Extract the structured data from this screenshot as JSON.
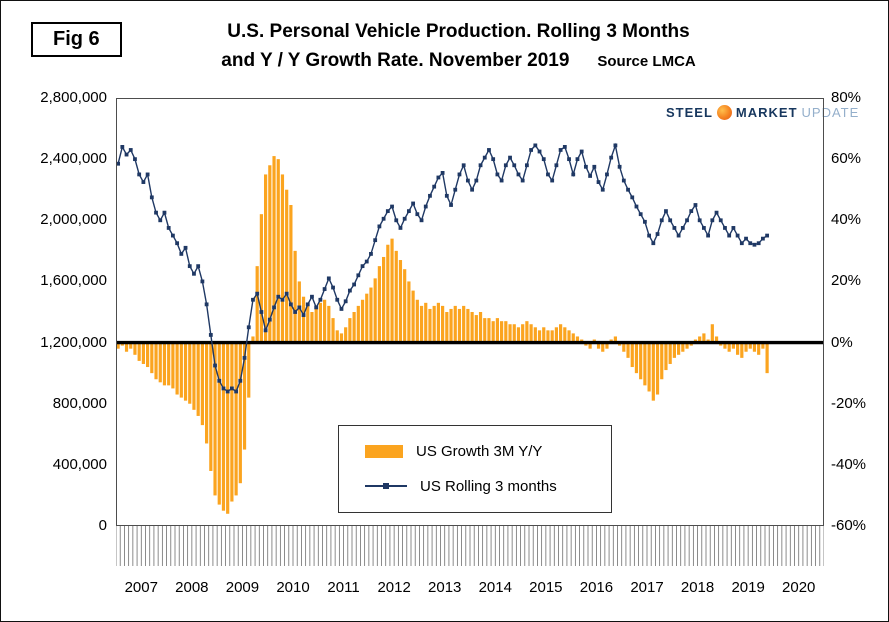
{
  "fig_label": "Fig 6",
  "title": {
    "line1": "U.S. Personal Vehicle Production. Rolling 3 Months",
    "line2": "and Y / Y Growth Rate. November 2019",
    "source": "Source LMCA"
  },
  "logo": {
    "word1": "STEEL",
    "word2": "MARKET",
    "word3": "UPDATE"
  },
  "legend": {
    "bar_label": "US Growth 3M Y/Y",
    "line_label": "US Rolling 3 months"
  },
  "chart_data": {
    "type": "combo",
    "title": "U.S. Personal Vehicle Production. Rolling 3 Months and Y / Y Growth Rate. November 2019",
    "grid": false,
    "legend_position": "bottom-center-box",
    "x_start": "2007-01",
    "x_end": "2019-11",
    "x_domain_months": 168,
    "x_axis_years": [
      "2007",
      "2008",
      "2009",
      "2010",
      "2011",
      "2012",
      "2013",
      "2014",
      "2015",
      "2016",
      "2017",
      "2018",
      "2019",
      "2020"
    ],
    "left_axis": {
      "min": 0,
      "max": 2800000,
      "step": 400000,
      "tick_labels": [
        "2,800,000",
        "2,400,000",
        "2,000,000",
        "1,600,000",
        "1,200,000",
        "800,000",
        "400,000",
        "0"
      ]
    },
    "right_axis": {
      "min": -60,
      "max": 80,
      "step": 20,
      "tick_labels": [
        "80%",
        "60%",
        "40%",
        "20%",
        "0%",
        "-20%",
        "-40%",
        "-60%"
      ]
    },
    "zero_line_left_value": 1200000,
    "colors": {
      "bar": "#FBA41F",
      "line": "#1F3864",
      "zero_line": "#000000"
    },
    "series": [
      {
        "name": "US Growth 3M Y/Y",
        "type": "bar",
        "axis": "right",
        "unit": "%",
        "color": "#FBA41F",
        "values": [
          -2,
          -1,
          -3,
          -2,
          -4,
          -6,
          -7,
          -8,
          -10,
          -12,
          -13,
          -14,
          -14,
          -15,
          -17,
          -18,
          -19,
          -20,
          -22,
          -24,
          -27,
          -33,
          -42,
          -50,
          -53,
          -55,
          -56,
          -52,
          -50,
          -46,
          -35,
          -18,
          2,
          25,
          42,
          55,
          58,
          61,
          60,
          55,
          50,
          45,
          30,
          20,
          15,
          12,
          10,
          12,
          13,
          14,
          12,
          8,
          4,
          3,
          5,
          8,
          10,
          12,
          14,
          16,
          18,
          21,
          25,
          28,
          32,
          34,
          30,
          27,
          24,
          20,
          17,
          14,
          12,
          13,
          11,
          12,
          13,
          12,
          10,
          11,
          12,
          11,
          12,
          11,
          10,
          9,
          10,
          8,
          8,
          7,
          8,
          7,
          7,
          6,
          6,
          5,
          6,
          7,
          6,
          5,
          4,
          5,
          4,
          4,
          5,
          6,
          5,
          4,
          3,
          2,
          1,
          -1,
          -2,
          1,
          -2,
          -3,
          -2,
          1,
          2,
          -1,
          -3,
          -5,
          -8,
          -10,
          -12,
          -14,
          -16,
          -19,
          -17,
          -12,
          -9,
          -7,
          -5,
          -4,
          -3,
          -2,
          -1,
          1,
          2,
          3,
          1,
          6,
          2,
          -1,
          -2,
          -3,
          -2,
          -4,
          -5,
          -3,
          -2,
          -3,
          -4,
          -2,
          -10
        ]
      },
      {
        "name": "US Rolling 3 months",
        "type": "line",
        "axis": "left",
        "unit": "vehicles",
        "color": "#1F3864",
        "values": [
          2370000,
          2480000,
          2430000,
          2460000,
          2400000,
          2300000,
          2250000,
          2300000,
          2150000,
          2050000,
          2000000,
          2050000,
          1950000,
          1900000,
          1850000,
          1780000,
          1820000,
          1700000,
          1650000,
          1700000,
          1600000,
          1450000,
          1250000,
          1050000,
          950000,
          900000,
          880000,
          900000,
          880000,
          950000,
          1100000,
          1300000,
          1480000,
          1520000,
          1400000,
          1280000,
          1350000,
          1430000,
          1500000,
          1480000,
          1520000,
          1450000,
          1400000,
          1430000,
          1380000,
          1450000,
          1500000,
          1430000,
          1480000,
          1550000,
          1620000,
          1560000,
          1480000,
          1420000,
          1470000,
          1540000,
          1580000,
          1640000,
          1700000,
          1730000,
          1780000,
          1870000,
          1960000,
          2010000,
          2060000,
          2090000,
          2000000,
          1950000,
          2010000,
          2060000,
          2110000,
          2040000,
          2000000,
          2090000,
          2160000,
          2220000,
          2280000,
          2310000,
          2160000,
          2100000,
          2200000,
          2300000,
          2360000,
          2260000,
          2200000,
          2260000,
          2360000,
          2410000,
          2460000,
          2400000,
          2300000,
          2260000,
          2360000,
          2410000,
          2360000,
          2300000,
          2260000,
          2360000,
          2460000,
          2490000,
          2450000,
          2400000,
          2300000,
          2260000,
          2360000,
          2460000,
          2480000,
          2400000,
          2300000,
          2400000,
          2450000,
          2350000,
          2290000,
          2350000,
          2250000,
          2200000,
          2300000,
          2410000,
          2490000,
          2350000,
          2260000,
          2200000,
          2150000,
          2090000,
          2040000,
          1990000,
          1900000,
          1850000,
          1910000,
          2000000,
          2060000,
          2000000,
          1950000,
          1900000,
          1950000,
          2000000,
          2060000,
          2100000,
          2000000,
          1950000,
          1900000,
          2000000,
          2050000,
          2000000,
          1950000,
          1900000,
          1950000,
          1900000,
          1850000,
          1880000,
          1850000,
          1840000,
          1850000,
          1880000,
          1900000
        ]
      }
    ]
  }
}
